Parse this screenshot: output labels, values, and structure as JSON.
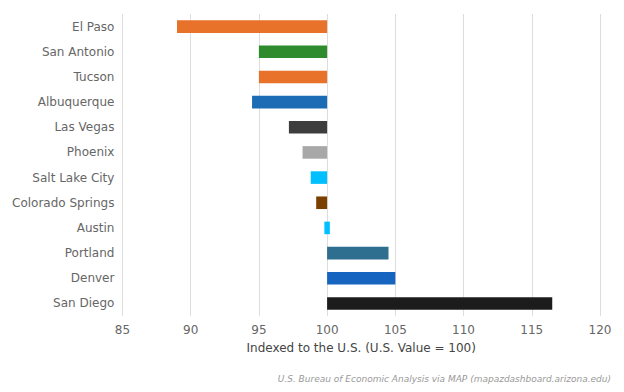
{
  "chart_data": {
    "type": "bar",
    "orientation": "horizontal",
    "categories": [
      "El Paso",
      "San Antonio",
      "Tucson",
      "Albuquerque",
      "Las Vegas",
      "Phoenix",
      "Salt Lake City",
      "Colorado Springs",
      "Austin",
      "Portland",
      "Denver",
      "San Diego"
    ],
    "starts": [
      89,
      95.0,
      95.0,
      94.5,
      97.2,
      98.2,
      98.8,
      99.2,
      99.8,
      100,
      100,
      100
    ],
    "values": [
      100,
      100,
      100,
      100,
      100,
      100,
      100,
      100,
      100.2,
      104.5,
      105.0,
      116.5
    ],
    "colors": [
      "#E8722A",
      "#2E8B2E",
      "#E8722A",
      "#1B6CB5",
      "#3D3D3D",
      "#A8A8A8",
      "#00BFFF",
      "#7B3F00",
      "#00BFFF",
      "#2E6E8E",
      "#1565C0",
      "#1C1C1C"
    ],
    "xlim": [
      85,
      120
    ],
    "xticks": [
      85,
      90,
      95,
      100,
      105,
      110,
      115,
      120
    ],
    "xlabel": "Indexed to the U.S. (U.S. Value = 100)",
    "annotation": "U.S. Bureau of Economic Analysis via MAP (mapazdashboard.arizona.edu)",
    "grid": true
  }
}
